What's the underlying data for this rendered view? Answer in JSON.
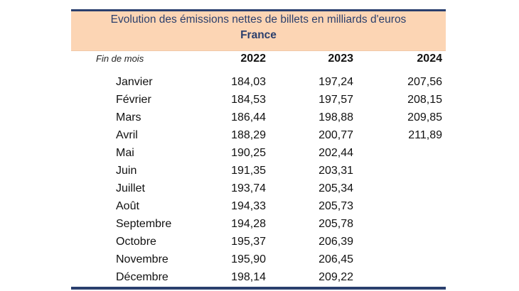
{
  "table": {
    "title": "Evolution des émissions nettes de billets en milliards d'euros",
    "subtitle": "France",
    "row_header": "Fin de mois",
    "years": [
      "2022",
      "2023",
      "2024"
    ],
    "rows": [
      {
        "month": "Janvier",
        "v2022": "184,03",
        "v2023": "197,24",
        "v2024": "207,56"
      },
      {
        "month": "Février",
        "v2022": "184,53",
        "v2023": "197,57",
        "v2024": "208,15"
      },
      {
        "month": "Mars",
        "v2022": "186,44",
        "v2023": "198,88",
        "v2024": "209,85"
      },
      {
        "month": "Avril",
        "v2022": "188,29",
        "v2023": "200,77",
        "v2024": "211,89"
      },
      {
        "month": "Mai",
        "v2022": "190,25",
        "v2023": "202,44",
        "v2024": ""
      },
      {
        "month": "Juin",
        "v2022": "191,35",
        "v2023": "203,31",
        "v2024": ""
      },
      {
        "month": "Juillet",
        "v2022": "193,74",
        "v2023": "205,34",
        "v2024": ""
      },
      {
        "month": "Août",
        "v2022": "194,33",
        "v2023": "205,73",
        "v2024": ""
      },
      {
        "month": "Septembre",
        "v2022": "194,28",
        "v2023": "205,78",
        "v2024": ""
      },
      {
        "month": "Octobre",
        "v2022": "195,37",
        "v2023": "206,39",
        "v2024": ""
      },
      {
        "month": "Novembre",
        "v2022": "195,90",
        "v2023": "206,45",
        "v2024": ""
      },
      {
        "month": "Décembre",
        "v2022": "198,14",
        "v2023": "209,22",
        "v2024": ""
      }
    ],
    "colors": {
      "rule": "#2a3f6e",
      "title_band": "#fcd5b4",
      "title_text": "#2b3f6c"
    }
  }
}
